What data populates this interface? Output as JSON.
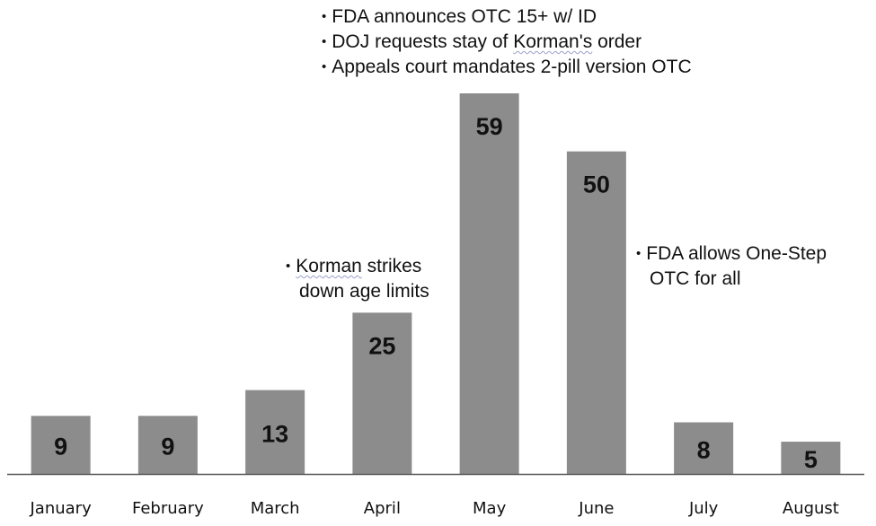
{
  "chart_data": {
    "type": "bar",
    "title": "",
    "xlabel": "",
    "ylabel": "",
    "categories": [
      "January",
      "February",
      "March",
      "April",
      "May",
      "June",
      "July",
      "August"
    ],
    "values": [
      9,
      9,
      13,
      25,
      59,
      50,
      8,
      5
    ],
    "ylim": [
      0,
      60
    ],
    "grid": false,
    "legend": "none",
    "bar_color": "#8c8c8c",
    "annotations": [
      {
        "category": "April",
        "lines": [
          "Korman strikes",
          "down age limits"
        ]
      },
      {
        "category": "May",
        "lines": [
          "FDA announces OTC 15+ w/ ID",
          "DOJ requests stay of Korman's order",
          "Appeals court mandates 2-pill version OTC"
        ]
      },
      {
        "category": "June",
        "lines": [
          "FDA allows One-Step",
          "OTC for all"
        ]
      }
    ]
  }
}
